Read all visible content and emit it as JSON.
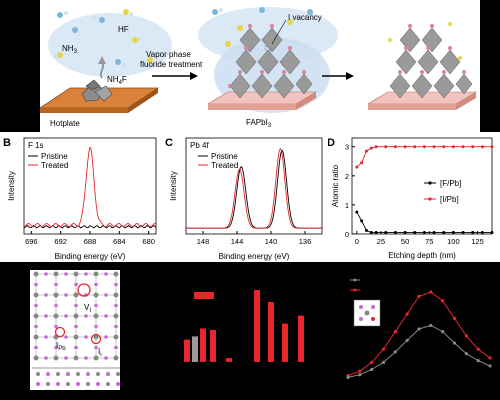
{
  "panel_a": {
    "nh3": "NH",
    "nh3_sub": "3",
    "hf": "HF",
    "nh4f": "NH",
    "nh4f_sub": "4",
    "nh4f_tail": "F",
    "hotplate": "Hotplate",
    "arrow_line1": "Vapor phase",
    "arrow_line2": "fluoride treatment",
    "vacancy": "I vacancy",
    "fapbi": "FAPbI",
    "fapbi_sub": "3"
  },
  "panel_b": {
    "letter": "B",
    "spectrum": "F 1s",
    "legend": [
      "Pristine",
      "Treated"
    ],
    "xlabel": "Binding energy (eV)",
    "ylabel": "Intensity",
    "xticks": [
      "696",
      "692",
      "688",
      "684",
      "680"
    ]
  },
  "panel_c": {
    "letter": "C",
    "spectrum": "Pb 4f",
    "legend": [
      "Pristine",
      "Treated"
    ],
    "xlabel": "Binding energy (eV)",
    "ylabel": "Intensity",
    "xticks": [
      "148",
      "144",
      "140",
      "136"
    ]
  },
  "panel_d": {
    "letter": "D",
    "xlabel": "Etching depth (nm)",
    "ylabel": "Atomic ratio",
    "xticks": [
      "0",
      "25",
      "50",
      "75",
      "100",
      "125"
    ],
    "yticks": [
      "0",
      "1",
      "2",
      "3"
    ],
    "legend": [
      "[F/Pb]",
      "[I/Pb]"
    ]
  },
  "panel_e": {
    "vi": "V",
    "vi_sub": "I",
    "ipb": "I",
    "ipb_sub": "Pb",
    "ii": "I",
    "ii_sub": "i"
  },
  "colors": {
    "pristine": "#000000",
    "treated": "#e8262b",
    "gray_curve": "#888888",
    "accent_bar": "#e8262b"
  },
  "chart_data": [
    {
      "type": "line",
      "panel": "B",
      "title": "F 1s",
      "xlabel": "Binding energy (eV)",
      "ylabel": "Intensity",
      "xlim": [
        697,
        679
      ],
      "reversed_x": true,
      "series": [
        {
          "name": "Pristine",
          "x": [
            697,
            679
          ],
          "y": [
            0.05,
            0.05
          ]
        },
        {
          "name": "Treated",
          "x": [
            697,
            690,
            689,
            688.5,
            688,
            687.5,
            687,
            686,
            679
          ],
          "y": [
            0.06,
            0.08,
            0.25,
            0.7,
            1.0,
            0.7,
            0.25,
            0.08,
            0.06
          ]
        }
      ]
    },
    {
      "type": "line",
      "panel": "C",
      "title": "Pb 4f",
      "xlabel": "Binding energy (eV)",
      "ylabel": "Intensity",
      "xlim": [
        150,
        134
      ],
      "reversed_x": true,
      "series": [
        {
          "name": "Pristine",
          "peaks": [
            {
              "center": 143.5,
              "height": 0.75
            },
            {
              "center": 138.7,
              "height": 0.95
            }
          ]
        },
        {
          "name": "Treated",
          "peaks": [
            {
              "center": 143.7,
              "height": 0.72
            },
            {
              "center": 138.9,
              "height": 0.97
            }
          ]
        }
      ]
    },
    {
      "type": "line",
      "panel": "D",
      "xlabel": "Etching depth (nm)",
      "ylabel": "Atomic ratio",
      "xlim": [
        -5,
        140
      ],
      "ylim": [
        0,
        3.3
      ],
      "series": [
        {
          "name": "[F/Pb]",
          "x": [
            0,
            5,
            10,
            15,
            20,
            30,
            40,
            50,
            60,
            70,
            80,
            90,
            100,
            110,
            120,
            130,
            140
          ],
          "y": [
            0.75,
            0.45,
            0.12,
            0.05,
            0.05,
            0.05,
            0.05,
            0.05,
            0.05,
            0.05,
            0.05,
            0.05,
            0.05,
            0.05,
            0.05,
            0.05,
            0.05
          ]
        },
        {
          "name": "[I/Pb]",
          "x": [
            0,
            5,
            10,
            15,
            20,
            30,
            40,
            50,
            60,
            70,
            80,
            90,
            100,
            110,
            120,
            130,
            140
          ],
          "y": [
            2.3,
            2.45,
            2.85,
            2.95,
            3.0,
            3.0,
            3.0,
            3.0,
            3.0,
            3.0,
            3.0,
            3.0,
            3.0,
            3.0,
            3.0,
            3.0,
            3.0
          ]
        }
      ]
    },
    {
      "type": "bar",
      "panel": "F",
      "values": [
        0.28,
        0.32,
        0.42,
        0.4,
        0.05,
        0.9,
        0.75,
        0.48,
        0.58
      ]
    },
    {
      "type": "line",
      "panel": "G",
      "series": [
        {
          "x": [
            0,
            1,
            2,
            3,
            4,
            5,
            6,
            7,
            8,
            9,
            10,
            11,
            12
          ],
          "y": [
            0.05,
            0.1,
            0.2,
            0.35,
            0.55,
            0.75,
            0.95,
            1.0,
            0.9,
            0.7,
            0.5,
            0.35,
            0.25
          ]
        },
        {
          "x": [
            0,
            1,
            2,
            3,
            4,
            5,
            6,
            7,
            8,
            9,
            10,
            11,
            12
          ],
          "y": [
            0.03,
            0.06,
            0.12,
            0.2,
            0.32,
            0.45,
            0.58,
            0.62,
            0.55,
            0.42,
            0.3,
            0.22,
            0.16
          ]
        }
      ]
    }
  ]
}
